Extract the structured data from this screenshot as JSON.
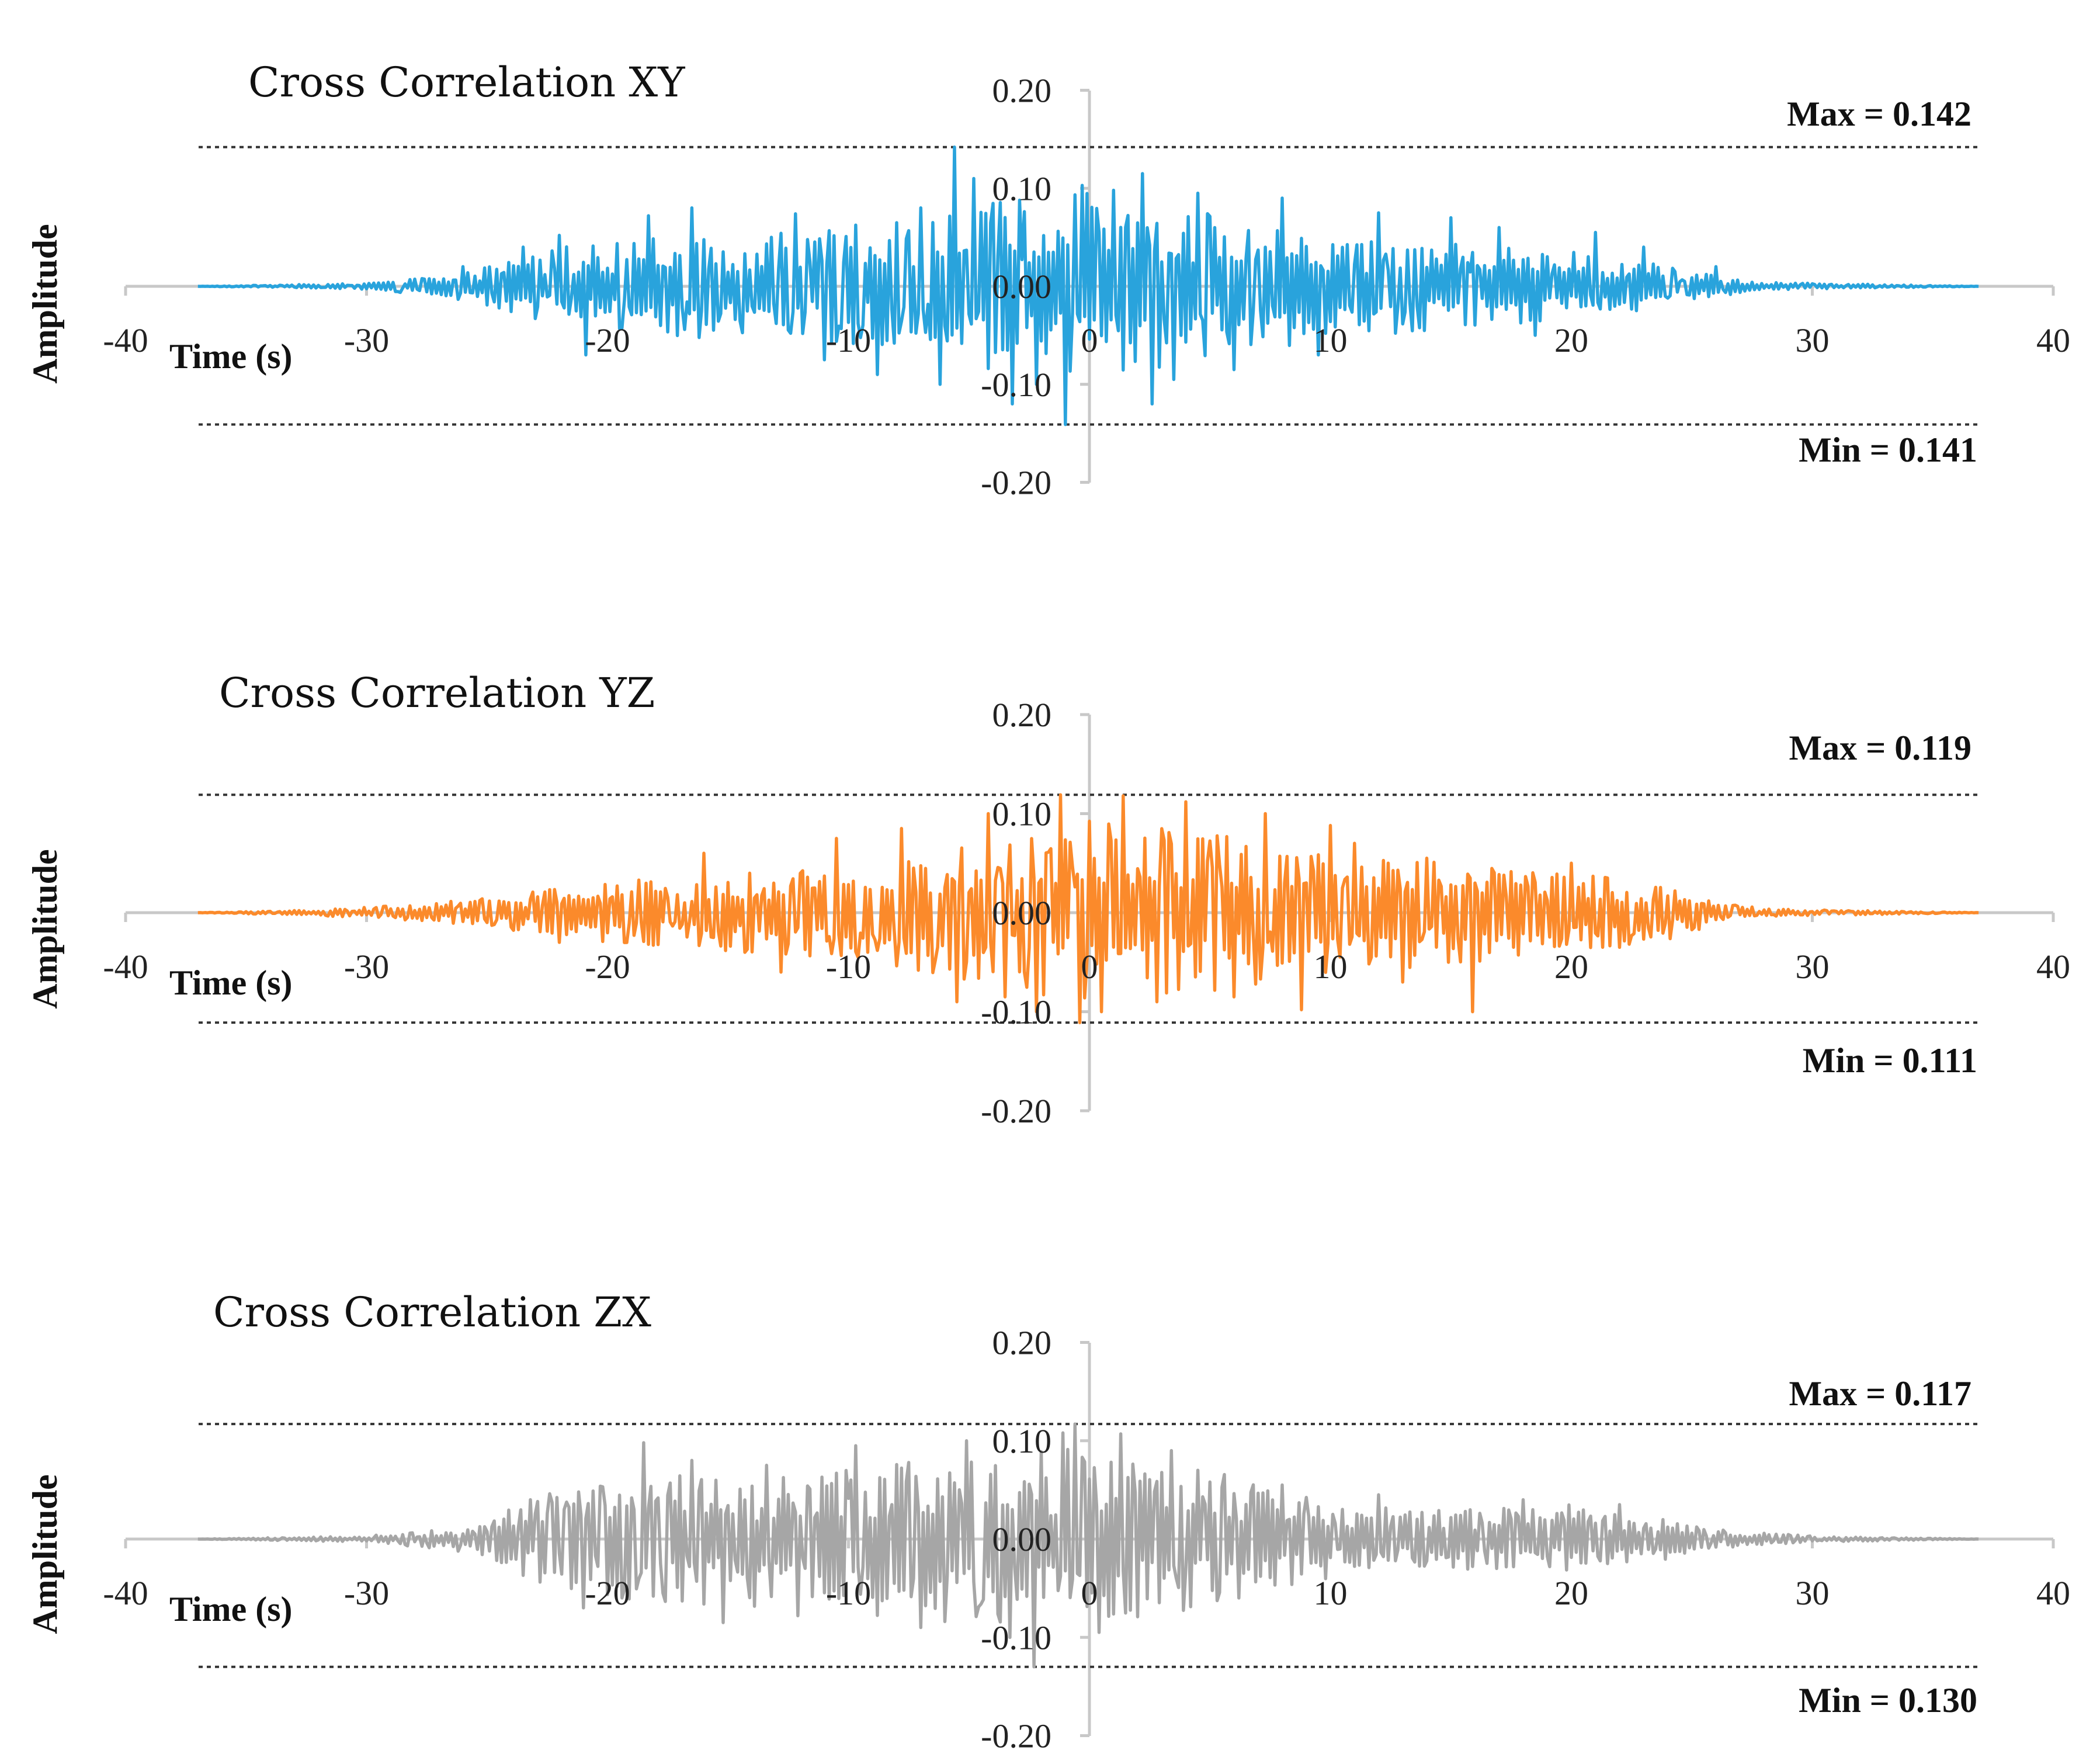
{
  "chart_data": [
    {
      "type": "line",
      "title": "Cross Correlation XY",
      "xlabel": "Time (s)",
      "ylabel": "Amplitude",
      "xlim": [
        -40,
        40
      ],
      "ylim": [
        -0.2,
        0.2
      ],
      "x_ticks": [
        "-40",
        "-30",
        "-20",
        "-10",
        "0",
        "10",
        "20",
        "30",
        "40"
      ],
      "y_ticks": [
        "0.20",
        "0.10",
        "0.00",
        "-0.10",
        "-0.20"
      ],
      "color": "#29a3dc",
      "max_label": "Max = 0.142",
      "min_label": "Min = 0.141",
      "max_value": 0.142,
      "min_value": -0.141,
      "signal_range": [
        -37,
        37
      ],
      "envelope": [
        [
          -37,
          0.0
        ],
        [
          -30,
          0.003
        ],
        [
          -27,
          0.01
        ],
        [
          -25,
          0.02
        ],
        [
          -22,
          0.04
        ],
        [
          -18,
          0.05
        ],
        [
          -14,
          0.055
        ],
        [
          -10,
          0.062
        ],
        [
          -6,
          0.075
        ],
        [
          -3,
          0.09
        ],
        [
          0,
          0.095
        ],
        [
          3,
          0.085
        ],
        [
          6,
          0.07
        ],
        [
          10,
          0.055
        ],
        [
          14,
          0.045
        ],
        [
          18,
          0.04
        ],
        [
          22,
          0.03
        ],
        [
          25,
          0.015
        ],
        [
          28,
          0.004
        ],
        [
          37,
          0.0
        ]
      ],
      "peaks": [
        [
          -5.6,
          0.142
        ],
        [
          -1.0,
          -0.141
        ],
        [
          -3.2,
          -0.12
        ],
        [
          -2.2,
          -0.1
        ],
        [
          -0.3,
          0.103
        ],
        [
          0.9,
          -0.105
        ],
        [
          2.2,
          0.115
        ],
        [
          2.6,
          -0.12
        ],
        [
          1.0,
          0.098
        ],
        [
          4.5,
          0.095
        ],
        [
          -7.0,
          0.08
        ],
        [
          -4.8,
          0.11
        ],
        [
          -12.2,
          0.074
        ],
        [
          -20.9,
          -0.07
        ],
        [
          -16.5,
          0.08
        ],
        [
          -18.3,
          0.072
        ],
        [
          -8.8,
          -0.09
        ],
        [
          -11,
          -0.075
        ],
        [
          6.0,
          -0.085
        ],
        [
          8.0,
          0.09
        ],
        [
          9.5,
          -0.07
        ],
        [
          12,
          0.075
        ],
        [
          15,
          0.07
        ],
        [
          17,
          0.06
        ],
        [
          21,
          0.055
        ],
        [
          23,
          0.04
        ],
        [
          -23.5,
          0.04
        ],
        [
          -26,
          0.02
        ],
        [
          26,
          0.02
        ],
        [
          -22,
          0.052
        ],
        [
          18.5,
          -0.05
        ],
        [
          3.5,
          -0.095
        ],
        [
          -6.2,
          -0.1
        ]
      ]
    },
    {
      "type": "line",
      "title": "Cross Correlation YZ",
      "xlabel": "Time (s)",
      "ylabel": "Amplitude",
      "xlim": [
        -40,
        40
      ],
      "ylim": [
        -0.2,
        0.2
      ],
      "x_ticks": [
        "-40",
        "-30",
        "-20",
        "-10",
        "0",
        "10",
        "20",
        "30",
        "40"
      ],
      "y_ticks": [
        "0.20",
        "0.10",
        "0.00",
        "-0.10",
        "-0.20"
      ],
      "color": "#fb8a2b",
      "max_label": "Max = 0.119",
      "min_label": "Min = 0.111",
      "max_value": 0.119,
      "min_value": -0.111,
      "signal_range": [
        -37,
        37
      ],
      "envelope": [
        [
          -37,
          0.0
        ],
        [
          -32,
          0.003
        ],
        [
          -28,
          0.008
        ],
        [
          -25,
          0.015
        ],
        [
          -22,
          0.025
        ],
        [
          -18,
          0.035
        ],
        [
          -14,
          0.042
        ],
        [
          -10,
          0.05
        ],
        [
          -7,
          0.06
        ],
        [
          -4,
          0.075
        ],
        [
          -1,
          0.09
        ],
        [
          1,
          0.095
        ],
        [
          3,
          0.088
        ],
        [
          6,
          0.078
        ],
        [
          9,
          0.068
        ],
        [
          12,
          0.058
        ],
        [
          15,
          0.052
        ],
        [
          18,
          0.045
        ],
        [
          21,
          0.04
        ],
        [
          24,
          0.028
        ],
        [
          26,
          0.012
        ],
        [
          28,
          0.004
        ],
        [
          37,
          0.0
        ]
      ],
      "peaks": [
        [
          -1.2,
          0.119
        ],
        [
          1.4,
          0.118
        ],
        [
          -0.4,
          -0.111
        ],
        [
          0.5,
          -0.1
        ],
        [
          -2.2,
          -0.1
        ],
        [
          -3.5,
          -0.085
        ],
        [
          4.0,
          0.112
        ],
        [
          -4.2,
          0.1
        ],
        [
          7.3,
          0.1
        ],
        [
          8.8,
          -0.098
        ],
        [
          15.9,
          -0.1
        ],
        [
          -10.5,
          0.075
        ],
        [
          -16,
          0.06
        ],
        [
          -5.5,
          -0.09
        ],
        [
          2.8,
          -0.09
        ],
        [
          6.0,
          -0.085
        ],
        [
          11,
          0.07
        ],
        [
          13,
          -0.07
        ],
        [
          -12.8,
          -0.06
        ],
        [
          20,
          0.05
        ],
        [
          24.3,
          0.022
        ],
        [
          -22,
          -0.03
        ],
        [
          -7.8,
          0.085
        ],
        [
          10,
          0.088
        ],
        [
          14,
          0.055
        ],
        [
          22,
          -0.035
        ]
      ]
    },
    {
      "type": "line",
      "title": "Cross Correlation ZX",
      "xlabel": "Time (s)",
      "ylabel": "Amplitude",
      "xlim": [
        -40,
        40
      ],
      "ylim": [
        -0.2,
        0.2
      ],
      "x_ticks": [
        "-40",
        "-30",
        "-20",
        "-10",
        "0",
        "10",
        "20",
        "30",
        "40"
      ],
      "y_ticks": [
        "0.20",
        "0.10",
        "0.00",
        "-0.10",
        "-0.20"
      ],
      "color": "#a6a6a6",
      "max_label": "Max = 0.117",
      "min_label": "Min = 0.130",
      "max_value": 0.117,
      "min_value": -0.13,
      "signal_range": [
        -37,
        37
      ],
      "envelope": [
        [
          -37,
          0.0
        ],
        [
          -30,
          0.003
        ],
        [
          -27,
          0.01
        ],
        [
          -25,
          0.02
        ],
        [
          -23,
          0.045
        ],
        [
          -20,
          0.06
        ],
        [
          -17,
          0.065
        ],
        [
          -14,
          0.07
        ],
        [
          -11,
          0.075
        ],
        [
          -8,
          0.08
        ],
        [
          -5,
          0.088
        ],
        [
          -2,
          0.095
        ],
        [
          0,
          0.09
        ],
        [
          2,
          0.08
        ],
        [
          5,
          0.07
        ],
        [
          8,
          0.05
        ],
        [
          11,
          0.035
        ],
        [
          14,
          0.03
        ],
        [
          17,
          0.032
        ],
        [
          20,
          0.035
        ],
        [
          23,
          0.025
        ],
        [
          26,
          0.01
        ],
        [
          30,
          0.003
        ],
        [
          37,
          0.0
        ]
      ],
      "peaks": [
        [
          -0.6,
          0.117
        ],
        [
          -2.3,
          -0.13
        ],
        [
          1.2,
          -0.118
        ],
        [
          -1.1,
          0.108
        ],
        [
          1.3,
          0.107
        ],
        [
          -5.1,
          0.1
        ],
        [
          -18.5,
          0.098
        ],
        [
          -15.2,
          -0.085
        ],
        [
          -7.0,
          -0.09
        ],
        [
          -9.7,
          0.095
        ],
        [
          3.4,
          0.09
        ],
        [
          -3.3,
          -0.1
        ],
        [
          -12.1,
          -0.078
        ],
        [
          -21.0,
          -0.07
        ],
        [
          -23.2,
          0.04
        ],
        [
          6.2,
          -0.06
        ],
        [
          8.0,
          0.055
        ],
        [
          12,
          0.045
        ],
        [
          18,
          0.04
        ],
        [
          22,
          0.035
        ],
        [
          -16.5,
          0.08
        ],
        [
          -13.4,
          0.075
        ],
        [
          0.4,
          -0.095
        ],
        [
          4.5,
          0.07
        ]
      ]
    }
  ]
}
